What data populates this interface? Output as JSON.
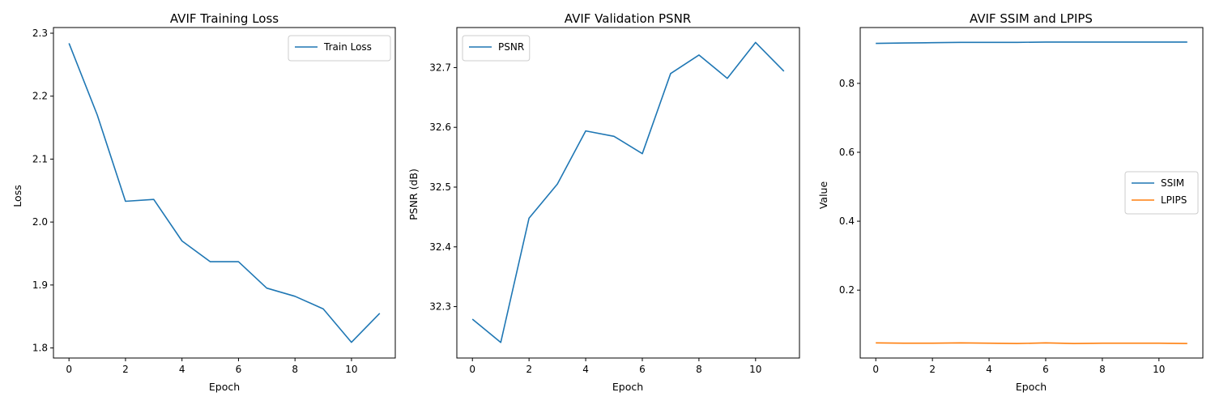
{
  "chart_data": [
    {
      "type": "line",
      "title": "AVIF Training Loss",
      "xlabel": "Epoch",
      "ylabel": "Loss",
      "x": [
        0,
        1,
        2,
        3,
        4,
        5,
        6,
        7,
        8,
        9,
        10,
        11
      ],
      "xlim": [
        -0.55,
        11.55
      ],
      "ylim": [
        1.784,
        2.309
      ],
      "xticks": [
        0,
        2,
        4,
        6,
        8,
        10
      ],
      "yticks": [
        1.8,
        1.9,
        2.0,
        2.1,
        2.2,
        2.3
      ],
      "ytick_labels": [
        "1.8",
        "1.9",
        "2.0",
        "2.1",
        "2.2",
        "2.3"
      ],
      "legend_position": "top-right",
      "series": [
        {
          "name": "Train Loss",
          "color": "#1f77b4",
          "values": [
            2.284,
            2.17,
            2.033,
            2.036,
            1.97,
            1.937,
            1.937,
            1.895,
            1.882,
            1.862,
            1.809,
            1.855
          ]
        }
      ]
    },
    {
      "type": "line",
      "title": "AVIF Validation PSNR",
      "xlabel": "Epoch",
      "ylabel": "PSNR (dB)",
      "x": [
        0,
        1,
        2,
        3,
        4,
        5,
        6,
        7,
        8,
        9,
        10,
        11
      ],
      "xlim": [
        -0.55,
        11.55
      ],
      "ylim": [
        32.214,
        32.767
      ],
      "xticks": [
        0,
        2,
        4,
        6,
        8,
        10
      ],
      "yticks": [
        32.3,
        32.4,
        32.5,
        32.6,
        32.7
      ],
      "ytick_labels": [
        "32.3",
        "32.4",
        "32.5",
        "32.6",
        "32.7"
      ],
      "legend_position": "top-left",
      "series": [
        {
          "name": "PSNR",
          "color": "#1f77b4",
          "values": [
            32.279,
            32.24,
            32.448,
            32.505,
            32.594,
            32.585,
            32.556,
            32.69,
            32.721,
            32.682,
            32.742,
            32.694
          ]
        }
      ]
    },
    {
      "type": "line",
      "title": "AVIF SSIM and LPIPS",
      "xlabel": "Epoch",
      "ylabel": "Value",
      "x": [
        0,
        1,
        2,
        3,
        4,
        5,
        6,
        7,
        8,
        9,
        10,
        11
      ],
      "xlim": [
        -0.55,
        11.55
      ],
      "ylim": [
        0.003,
        0.962
      ],
      "xticks": [
        0,
        2,
        4,
        6,
        8,
        10
      ],
      "yticks": [
        0.2,
        0.4,
        0.6,
        0.8
      ],
      "ytick_labels": [
        "0.2",
        "0.4",
        "0.6",
        "0.8"
      ],
      "legend_position": "center-right",
      "series": [
        {
          "name": "SSIM",
          "color": "#1f77b4",
          "values": [
            0.916,
            0.917,
            0.918,
            0.919,
            0.919,
            0.919,
            0.92,
            0.92,
            0.92,
            0.92,
            0.92,
            0.92
          ]
        },
        {
          "name": "LPIPS",
          "color": "#ff7f0e",
          "values": [
            0.047,
            0.046,
            0.046,
            0.047,
            0.046,
            0.045,
            0.047,
            0.045,
            0.046,
            0.046,
            0.046,
            0.045
          ]
        }
      ]
    }
  ]
}
